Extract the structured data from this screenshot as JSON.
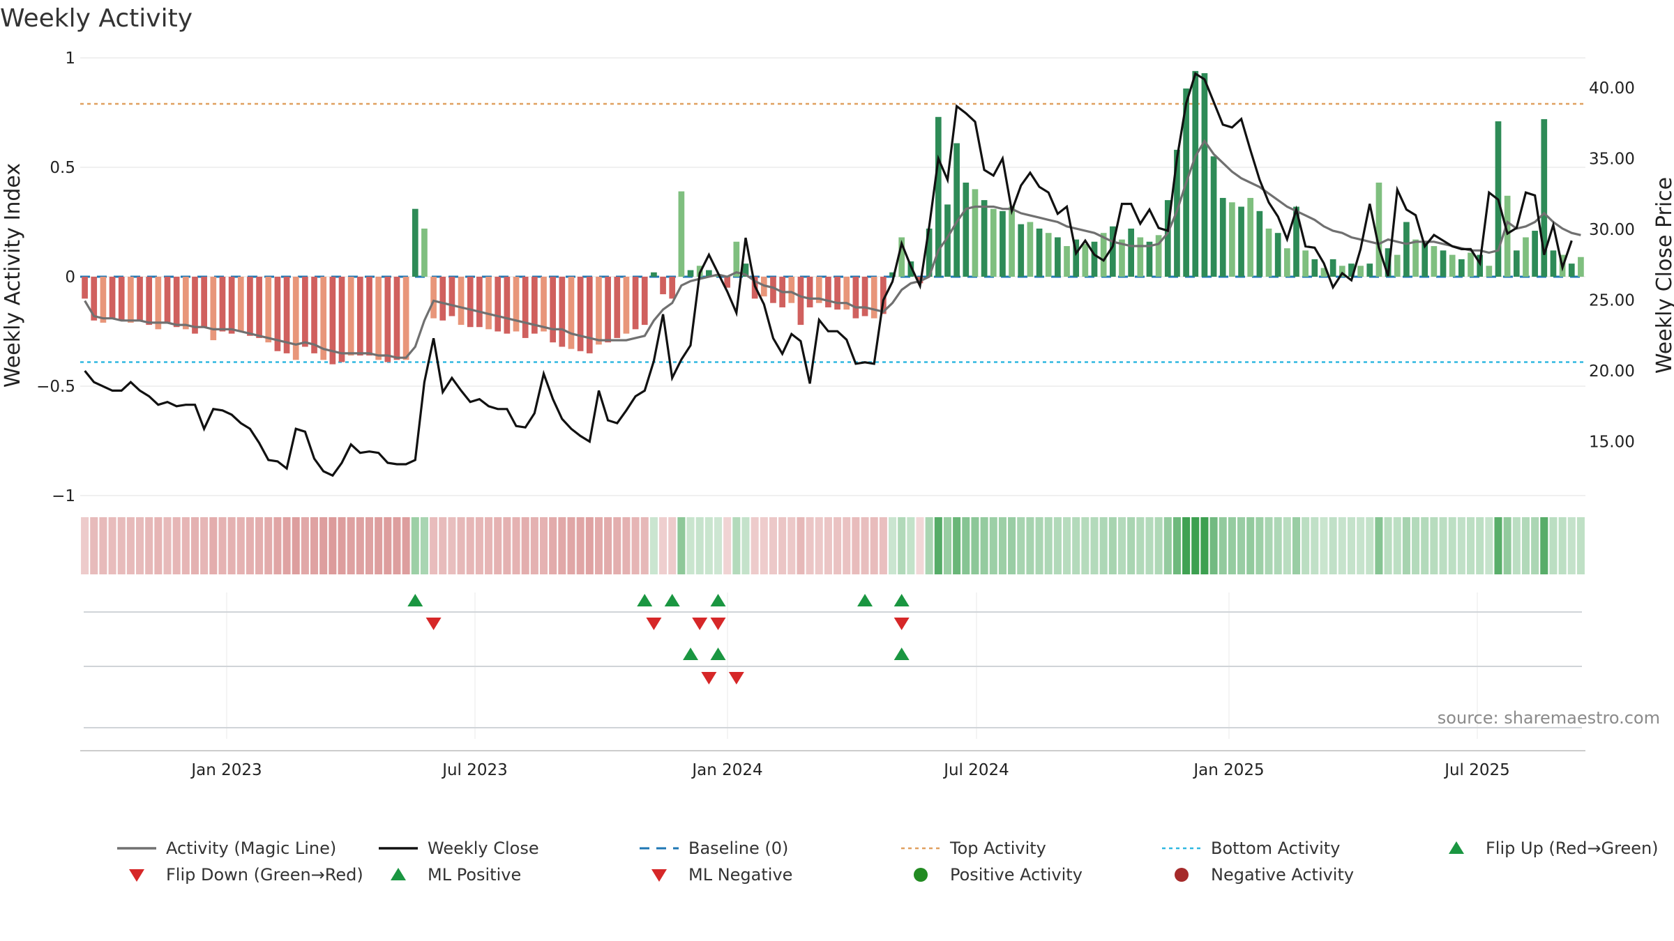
{
  "chart_data": {
    "type": "bar",
    "title": "Weekly Activity",
    "ylabel": "Weekly Activity Index",
    "y2label": "Weekly Close Price",
    "ylim": [
      -1,
      1
    ],
    "y2lim": [
      10.5,
      44.3
    ],
    "yticks": [
      "1",
      "0.5",
      "0",
      "−0.5",
      "−1"
    ],
    "y2ticks": [
      "40.00",
      "35.00",
      "30.00",
      "25.00",
      "20.00",
      "15.00"
    ],
    "xticks": [
      "Jan 2023",
      "Jul 2023",
      "Jan 2024",
      "Jul 2024",
      "Jan 2025",
      "Jul 2025"
    ],
    "top_activity": 0.79,
    "bottom_activity": -0.39,
    "baseline": 0,
    "source": "source: sharemaestro.com",
    "colors": {
      "strong_pos": "#2e8b57",
      "weak_pos": "#7fbf7f",
      "strong_neg": "#d0605e",
      "weak_neg": "#e8967a",
      "magic": "#707070",
      "close": "#111111",
      "top": "#e0a060",
      "bottom": "#30b8e0",
      "baseline": "#1f77b4",
      "flip_up": "#1a9641",
      "flip_down": "#d62728"
    },
    "series": [
      {
        "name": "Activity Index",
        "values": [
          -0.1,
          -0.2,
          -0.21,
          -0.19,
          -0.2,
          -0.21,
          -0.2,
          -0.22,
          -0.24,
          -0.21,
          -0.23,
          -0.24,
          -0.26,
          -0.23,
          -0.29,
          -0.25,
          -0.26,
          -0.25,
          -0.27,
          -0.28,
          -0.3,
          -0.34,
          -0.35,
          -0.38,
          -0.32,
          -0.35,
          -0.38,
          -0.4,
          -0.39,
          -0.36,
          -0.36,
          -0.36,
          -0.38,
          -0.39,
          -0.38,
          -0.38,
          0.31,
          0.22,
          -0.19,
          -0.2,
          -0.18,
          -0.22,
          -0.23,
          -0.23,
          -0.24,
          -0.25,
          -0.26,
          -0.25,
          -0.28,
          -0.26,
          -0.25,
          -0.3,
          -0.32,
          -0.33,
          -0.34,
          -0.35,
          -0.31,
          -0.3,
          -0.28,
          -0.26,
          -0.24,
          -0.22,
          0.02,
          -0.08,
          -0.1,
          0.39,
          0.03,
          0.05,
          0.03,
          0.01,
          -0.05,
          0.16,
          0.06,
          -0.1,
          -0.09,
          -0.12,
          -0.14,
          -0.12,
          -0.22,
          -0.14,
          -0.12,
          -0.14,
          -0.15,
          -0.15,
          -0.19,
          -0.18,
          -0.19,
          -0.17,
          0.02,
          0.18,
          0.07,
          -0.03,
          0.22,
          0.73,
          0.33,
          0.61,
          0.43,
          0.4,
          0.35,
          0.31,
          0.3,
          0.32,
          0.24,
          0.25,
          0.22,
          0.2,
          0.18,
          0.14,
          0.17,
          0.15,
          0.16,
          0.2,
          0.23,
          0.17,
          0.22,
          0.18,
          0.16,
          0.19,
          0.35,
          0.58,
          0.86,
          0.94,
          0.93,
          0.55,
          0.36,
          0.34,
          0.32,
          0.36,
          0.3,
          0.22,
          0.2,
          0.13,
          0.32,
          0.12,
          0.08,
          0.04,
          0.08,
          0.05,
          0.06,
          0.05,
          0.06,
          0.43,
          0.13,
          0.1,
          0.25,
          0.17,
          0.16,
          0.14,
          0.12,
          0.1,
          0.08,
          0.11,
          0.1,
          0.05,
          0.71,
          0.37,
          0.12,
          0.18,
          0.21,
          0.72,
          0.12,
          0.1,
          0.06,
          0.09
        ]
      },
      {
        "name": "Activity (Magic Line)",
        "values": [
          -0.11,
          -0.18,
          -0.19,
          -0.19,
          -0.2,
          -0.2,
          -0.2,
          -0.21,
          -0.21,
          -0.21,
          -0.22,
          -0.22,
          -0.23,
          -0.23,
          -0.24,
          -0.24,
          -0.24,
          -0.25,
          -0.26,
          -0.27,
          -0.28,
          -0.29,
          -0.3,
          -0.31,
          -0.3,
          -0.31,
          -0.33,
          -0.34,
          -0.35,
          -0.35,
          -0.35,
          -0.35,
          -0.36,
          -0.36,
          -0.37,
          -0.37,
          -0.32,
          -0.2,
          -0.11,
          -0.12,
          -0.13,
          -0.14,
          -0.15,
          -0.16,
          -0.17,
          -0.18,
          -0.19,
          -0.2,
          -0.21,
          -0.22,
          -0.23,
          -0.24,
          -0.24,
          -0.26,
          -0.27,
          -0.28,
          -0.29,
          -0.29,
          -0.29,
          -0.29,
          -0.28,
          -0.27,
          -0.2,
          -0.15,
          -0.12,
          -0.04,
          -0.02,
          -0.01,
          0,
          0.01,
          0,
          0.02,
          0.01,
          -0.02,
          -0.04,
          -0.05,
          -0.07,
          -0.07,
          -0.09,
          -0.1,
          -0.1,
          -0.11,
          -0.12,
          -0.12,
          -0.14,
          -0.14,
          -0.15,
          -0.16,
          -0.12,
          -0.06,
          -0.03,
          -0.02,
          0,
          0.12,
          0.18,
          0.25,
          0.31,
          0.32,
          0.32,
          0.32,
          0.31,
          0.31,
          0.29,
          0.28,
          0.27,
          0.26,
          0.25,
          0.23,
          0.22,
          0.21,
          0.2,
          0.18,
          0.16,
          0.15,
          0.14,
          0.14,
          0.14,
          0.15,
          0.2,
          0.3,
          0.43,
          0.55,
          0.62,
          0.56,
          0.52,
          0.48,
          0.45,
          0.43,
          0.41,
          0.38,
          0.35,
          0.32,
          0.3,
          0.28,
          0.26,
          0.23,
          0.21,
          0.2,
          0.18,
          0.17,
          0.16,
          0.15,
          0.17,
          0.16,
          0.15,
          0.16,
          0.16,
          0.16,
          0.15,
          0.14,
          0.13,
          0.12,
          0.12,
          0.11,
          0.12,
          0.25,
          0.22,
          0.23,
          0.25,
          0.29,
          0.25,
          0.22,
          0.2,
          0.19
        ]
      },
      {
        "name": "Weekly Close",
        "values": [
          20,
          19.2,
          18.9,
          18.6,
          18.6,
          19.2,
          18.6,
          18.2,
          17.6,
          17.8,
          17.5,
          17.6,
          17.6,
          15.9,
          17.3,
          17.2,
          16.9,
          16.3,
          15.9,
          14.9,
          13.7,
          13.6,
          13.1,
          15.9,
          15.7,
          13.8,
          12.9,
          12.6,
          13.5,
          14.8,
          14.2,
          14.3,
          14.2,
          13.5,
          13.4,
          13.4,
          13.7,
          19.2,
          22.3,
          18.5,
          19.5,
          18.6,
          17.8,
          18,
          17.5,
          17.3,
          17.3,
          16.1,
          16,
          17,
          19.8,
          18,
          16.6,
          15.9,
          15.4,
          15,
          18.6,
          16.5,
          16.3,
          17.2,
          18.2,
          18.6,
          20.7,
          24,
          19.5,
          20.8,
          21.8,
          26.9,
          28.2,
          26.9,
          25.6,
          24.1,
          29.4,
          26,
          24.7,
          22.3,
          21.2,
          22.6,
          22.1,
          19.1,
          23.6,
          22.8,
          22.8,
          22.2,
          20.5,
          20.6,
          20.5,
          25,
          26.3,
          29,
          27.4,
          26,
          30.2,
          35,
          33.5,
          38.7,
          38.2,
          37.6,
          34.2,
          33.8,
          35,
          31.3,
          33.1,
          34,
          33,
          32.6,
          31.1,
          31.6,
          28.3,
          29.2,
          28.2,
          27.8,
          28.8,
          31.8,
          31.8,
          30.4,
          31.4,
          30.1,
          29.9,
          35,
          38.9,
          41,
          40.6,
          39,
          37.4,
          37.2,
          37.8,
          35.6,
          33.5,
          31.9,
          30.9,
          29.3,
          31.4,
          28.8,
          28.7,
          27.6,
          25.9,
          26.9,
          26.4,
          28.6,
          31.8,
          28.7,
          26.7,
          32.8,
          31.4,
          31,
          28.8,
          29.6,
          29.2,
          28.8,
          28.6,
          28.6,
          27.6,
          32.6,
          32.1,
          29.7,
          30.1,
          32.6,
          32.4,
          28.2,
          30.3,
          27.3,
          29.2
        ]
      },
      {
        "name": "Flip Up (Red→Green)",
        "index": [
          36,
          61,
          64,
          69,
          85,
          89
        ],
        "row": 1
      },
      {
        "name": "Flip Down (Green→Red)",
        "index": [
          38,
          62,
          67,
          69,
          89
        ],
        "row": 1
      },
      {
        "name": "ML Positive",
        "index": [
          66,
          69,
          89
        ],
        "row": 2
      },
      {
        "name": "ML Negative",
        "index": [
          68,
          71
        ],
        "row": 2
      }
    ],
    "legend": [
      {
        "key": "magic",
        "label": "Activity (Magic Line)"
      },
      {
        "key": "close",
        "label": "Weekly Close"
      },
      {
        "key": "baseline",
        "label": "Baseline (0)"
      },
      {
        "key": "top",
        "label": "Top Activity"
      },
      {
        "key": "bottom",
        "label": "Bottom Activity"
      },
      {
        "key": "flip_up",
        "label": "Flip Up (Red→Green)"
      },
      {
        "key": "flip_down",
        "label": "Flip Down (Green→Red)"
      },
      {
        "key": "ml_pos",
        "label": "ML Positive"
      },
      {
        "key": "ml_neg",
        "label": "ML Negative"
      },
      {
        "key": "pos_act",
        "label": "Positive Activity"
      },
      {
        "key": "neg_act",
        "label": "Negative Activity"
      }
    ]
  }
}
